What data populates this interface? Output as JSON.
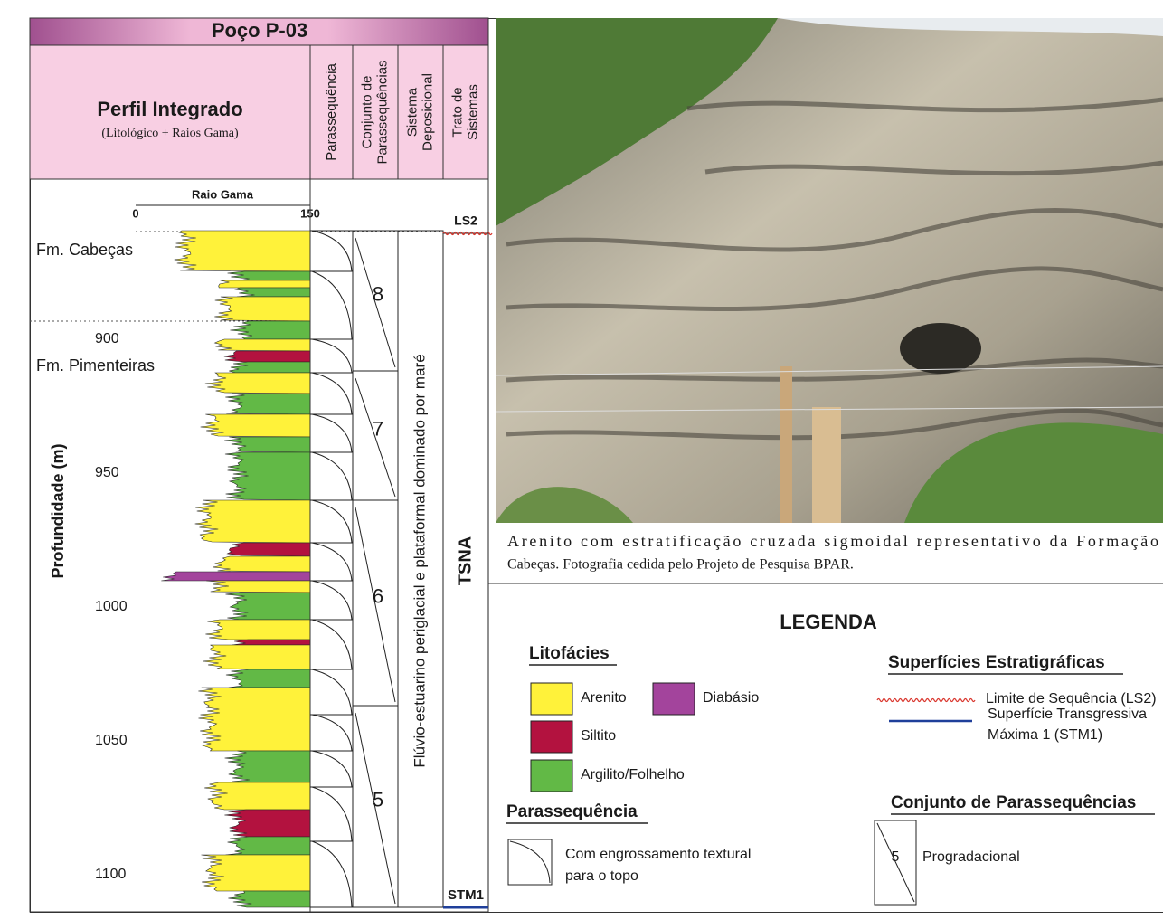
{
  "log_panel": {
    "title": "Poço P-03",
    "profile_title": "Perfil Integrado",
    "profile_subtitle": "(Litológico + Raios Gama)",
    "columns": [
      [
        "Parassequência"
      ],
      [
        "Conjunto de",
        "Parassequências"
      ],
      [
        "Sistema",
        "Deposicional"
      ],
      [
        "Trato de",
        "Sistemas"
      ]
    ],
    "gamma_axis": {
      "label": "Raio Gama",
      "min": 0,
      "max": 150
    },
    "depth_axis": {
      "label": "Profundidade (m)",
      "ticks": [
        900,
        950,
        1000,
        1050,
        1100
      ]
    },
    "formations": [
      "Fm. Cabeças",
      "Fm. Pimenteiras"
    ],
    "parasequence_sets": [
      8,
      7,
      6,
      5
    ],
    "depositional_system": "Flúvio-estuarino periglacial e plataformal dominado por maré",
    "systems_tract": "TSNA",
    "surfaces": [
      "LS2",
      "STM1"
    ]
  },
  "photo_caption": [
    "Arenito com estratificação cruzada sigmoidal representativo da Formação",
    "Cabeças. Fotografia cedida pelo Projeto de Pesquisa BPAR."
  ],
  "legend": {
    "title": "LEGENDA",
    "lithofacies": {
      "title": "Litofácies",
      "items": [
        "Arenito",
        "Diabásio",
        "Siltito",
        "Argilito/Folhelho"
      ]
    },
    "parasequence": {
      "title": "Parassequência",
      "description": [
        "Com engrossamento textural",
        "para o topo"
      ]
    },
    "surfaces": {
      "title": "Superfícies Estratigráficas",
      "items": [
        [
          "Limite de Sequência (LS2)"
        ],
        [
          "Superfície Transgressiva",
          "Máxima 1 (STM1)"
        ]
      ]
    },
    "parasequence_sets": {
      "title": "Conjunto de Parassequências",
      "example": "5",
      "label": "Progradacional"
    }
  }
}
